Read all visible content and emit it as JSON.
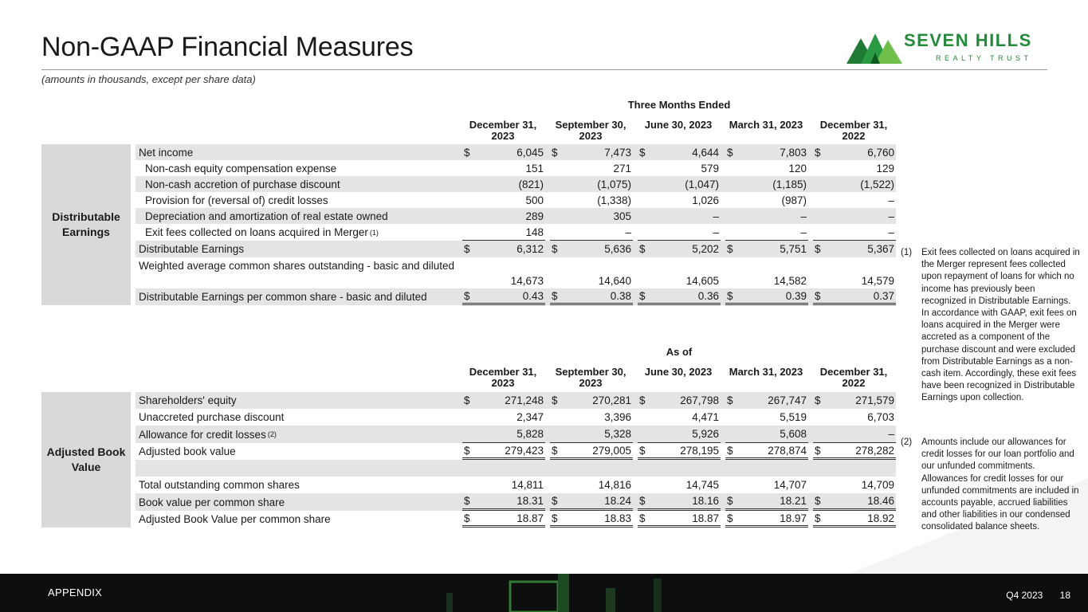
{
  "page": {
    "title": "Non-GAAP Financial Measures",
    "subtitle": "(amounts in thousands, except per share data)"
  },
  "logo": {
    "name": "SEVEN HILLS",
    "sub": "REALTY TRUST"
  },
  "de": {
    "section_label": "Distributable Earnings",
    "group_header": "Three Months Ended",
    "columns": [
      "December 31, 2023",
      "September 30, 2023",
      "June 30, 2023",
      "March 31, 2023",
      "December 31, 2022"
    ],
    "rows": [
      {
        "label": "Net income",
        "values": [
          "6,045",
          "7,473",
          "4,644",
          "7,803",
          "6,760"
        ]
      },
      {
        "label": "Non-cash equity compensation expense",
        "values": [
          "151",
          "271",
          "579",
          "120",
          "129"
        ]
      },
      {
        "label": "Non-cash accretion of purchase discount",
        "values": [
          "(821)",
          "(1,075)",
          "(1,047)",
          "(1,185)",
          "(1,522)"
        ]
      },
      {
        "label": "Provision for (reversal of) credit losses",
        "values": [
          "500",
          "(1,338)",
          "1,026",
          "(987)",
          "–"
        ]
      },
      {
        "label": "Depreciation and amortization of real estate owned",
        "values": [
          "289",
          "305",
          "–",
          "–",
          "–"
        ]
      },
      {
        "label": "Exit fees collected on loans acquired in Merger",
        "sup": "(1)",
        "values": [
          "148",
          "–",
          "–",
          "–",
          "–"
        ]
      },
      {
        "label": "Distributable Earnings",
        "values": [
          "6,312",
          "5,636",
          "5,202",
          "5,751",
          "5,367"
        ]
      },
      {
        "label": "Weighted average common shares outstanding - basic and diluted",
        "values": [
          "14,673",
          "14,640",
          "14,605",
          "14,582",
          "14,579"
        ]
      },
      {
        "label": "Distributable Earnings per common share - basic and diluted",
        "values": [
          "0.43",
          "0.38",
          "0.36",
          "0.39",
          "0.37"
        ]
      }
    ]
  },
  "abv": {
    "section_label": "Adjusted Book Value",
    "group_header": "As of",
    "columns": [
      "December 31, 2023",
      "September 30, 2023",
      "June 30, 2023",
      "March 31, 2023",
      "December 31, 2022"
    ],
    "rows": [
      {
        "label": "Shareholders' equity",
        "values": [
          "271,248",
          "270,281",
          "267,798",
          "267,747",
          "271,579"
        ]
      },
      {
        "label": "Unaccreted purchase discount",
        "values": [
          "2,347",
          "3,396",
          "4,471",
          "5,519",
          "6,703"
        ]
      },
      {
        "label": "Allowance for credit losses",
        "sup": "(2)",
        "values": [
          "5,828",
          "5,328",
          "5,926",
          "5,608",
          "–"
        ]
      },
      {
        "label": "Adjusted book value",
        "values": [
          "279,423",
          "279,005",
          "278,195",
          "278,874",
          "278,282"
        ]
      },
      {
        "label": "",
        "values": [
          "",
          "",
          "",
          "",
          ""
        ]
      },
      {
        "label": "Total outstanding common shares",
        "values": [
          "14,811",
          "14,816",
          "14,745",
          "14,707",
          "14,709"
        ]
      },
      {
        "label": "Book value per common share",
        "values": [
          "18.31",
          "18.24",
          "18.16",
          "18.21",
          "18.46"
        ]
      },
      {
        "label": "Adjusted Book Value per common share",
        "values": [
          "18.87",
          "18.83",
          "18.87",
          "18.97",
          "18.92"
        ]
      }
    ]
  },
  "currency_symbol": "$",
  "notes": [
    {
      "num": "(1)",
      "text": "Exit fees collected on loans acquired in the Merger represent fees collected upon repayment of loans for which no income has previously been recognized in Distributable Earnings. In accordance with GAAP, exit fees on loans acquired in the Merger were accreted as a component of the purchase discount and were excluded from Distributable Earnings as a non-cash item. Accordingly, these exit fees have been recognized in Distributable Earnings upon collection."
    },
    {
      "num": "(2)",
      "text": "Amounts include our allowances for credit losses for our loan portfolio and our unfunded commitments. Allowances for credit losses for our unfunded commitments are included in accounts payable, accrued liabilities and other liabilities in our condensed consolidated balance sheets."
    }
  ],
  "footer": {
    "left": "APPENDIX",
    "quarter": "Q4 2023",
    "page_num": "18"
  },
  "colors": {
    "brand_green": "#238b3a",
    "row_shade": "#e4e4e4",
    "label_bg": "#d9d9d9",
    "footer_bg": "#0c0f0d"
  }
}
